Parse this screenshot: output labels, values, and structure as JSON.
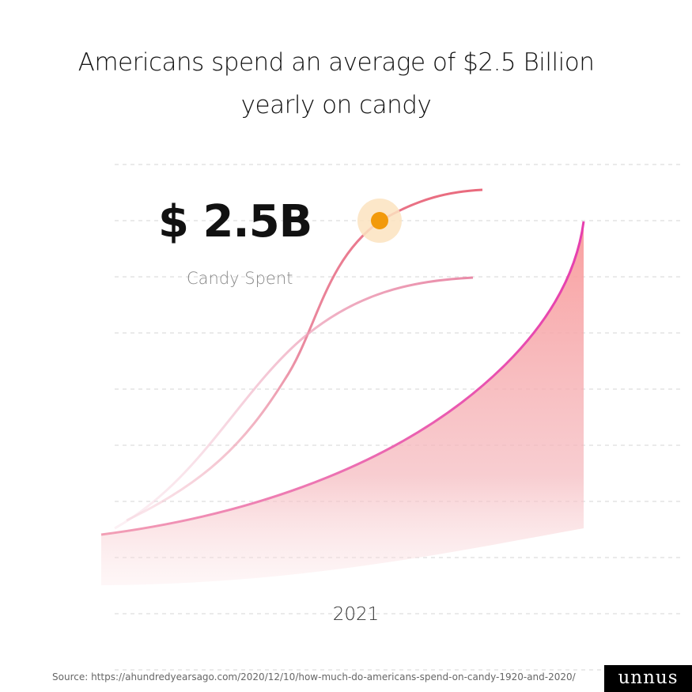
{
  "title_line1": "Americans spend an average of $2.5 Billion",
  "title_line2": "yearly on candy",
  "chart_data": {
    "type": "area",
    "title": "Americans spend an average of $2.5 Billion yearly on candy",
    "highlight_value": "$ 2.5B",
    "highlight_label": "Candy Spent",
    "categories": [
      "2021"
    ],
    "grid": true,
    "colors": {
      "area": "#f7a1a1",
      "line": "#e9459b",
      "marker": "#f29a0c",
      "marker_halo": "#fbe3c0"
    }
  },
  "footer": {
    "source": "Source: https://ahundredyearsago.com/2020/12/10/how-much-do-americans-spend-on-candy-1920-and-2020/",
    "logo": "unnus"
  }
}
